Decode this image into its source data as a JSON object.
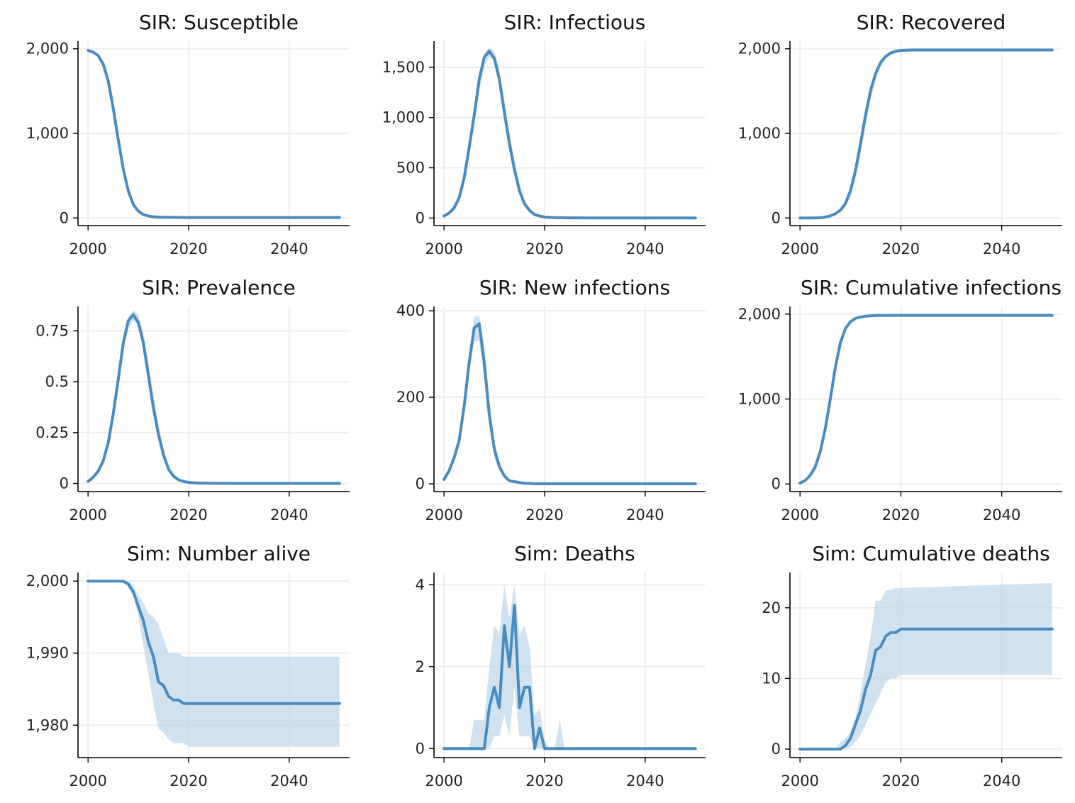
{
  "style": {
    "line_color": "#4a8bbf",
    "band_color": "#bcd6ea",
    "grid_color": "#eeeeee"
  },
  "chart_data": [
    {
      "type": "line",
      "title": "SIR: Susceptible",
      "xticks": [
        2000,
        2020,
        2040
      ],
      "xlim": [
        1998,
        2052
      ],
      "yticks": [
        0,
        1000,
        2000
      ],
      "yticklabels": [
        "0",
        "1,000",
        "2,000"
      ],
      "ylim": [
        -90,
        2090
      ],
      "grid": true,
      "x": [
        2000,
        2001,
        2002,
        2003,
        2004,
        2005,
        2006,
        2007,
        2008,
        2009,
        2010,
        2011,
        2012,
        2013,
        2014,
        2015,
        2020,
        2030,
        2040,
        2050
      ],
      "y": [
        1980,
        1960,
        1920,
        1820,
        1620,
        1300,
        930,
        580,
        320,
        160,
        80,
        40,
        22,
        14,
        10,
        8,
        6,
        6,
        6,
        6
      ],
      "lower": [
        1975,
        1950,
        1900,
        1790,
        1580,
        1250,
        880,
        540,
        290,
        140,
        70,
        35,
        18,
        12,
        8,
        6,
        5,
        5,
        5,
        5
      ],
      "upper": [
        1985,
        1968,
        1935,
        1850,
        1670,
        1360,
        990,
        640,
        360,
        190,
        95,
        50,
        28,
        18,
        13,
        10,
        8,
        8,
        8,
        8
      ]
    },
    {
      "type": "line",
      "title": "SIR: Infectious",
      "xticks": [
        2000,
        2020,
        2040
      ],
      "xlim": [
        1998,
        2052
      ],
      "yticks": [
        0,
        500,
        1000,
        1500
      ],
      "yticklabels": [
        "0",
        "500",
        "1,000",
        "1,500"
      ],
      "ylim": [
        -75,
        1760
      ],
      "grid": true,
      "x": [
        2000,
        2001,
        2002,
        2003,
        2004,
        2005,
        2006,
        2007,
        2008,
        2009,
        2010,
        2011,
        2012,
        2013,
        2014,
        2015,
        2016,
        2017,
        2018,
        2019,
        2020,
        2022,
        2025,
        2030,
        2040,
        2050
      ],
      "y": [
        20,
        50,
        100,
        200,
        400,
        700,
        1020,
        1380,
        1600,
        1660,
        1590,
        1380,
        1050,
        740,
        480,
        270,
        140,
        75,
        35,
        20,
        10,
        4,
        2,
        1,
        1,
        1
      ],
      "lower": [
        15,
        40,
        85,
        175,
        350,
        620,
        920,
        1260,
        1500,
        1600,
        1560,
        1380,
        1080,
        780,
        520,
        300,
        160,
        85,
        42,
        22,
        12,
        5,
        2,
        1,
        1,
        1
      ],
      "upper": [
        25,
        60,
        115,
        225,
        440,
        770,
        1100,
        1450,
        1640,
        1700,
        1660,
        1480,
        1170,
        850,
        580,
        340,
        180,
        100,
        50,
        28,
        14,
        6,
        3,
        1,
        1,
        1
      ]
    },
    {
      "type": "line",
      "title": "SIR: Recovered",
      "xticks": [
        2000,
        2020,
        2040
      ],
      "xlim": [
        1998,
        2052
      ],
      "yticks": [
        0,
        1000,
        2000
      ],
      "yticklabels": [
        "0",
        "1,000",
        "2,000"
      ],
      "ylim": [
        -90,
        2090
      ],
      "grid": true,
      "x": [
        2000,
        2002,
        2004,
        2005,
        2006,
        2007,
        2008,
        2009,
        2010,
        2011,
        2012,
        2013,
        2014,
        2015,
        2016,
        2017,
        2018,
        2019,
        2020,
        2022,
        2030,
        2040,
        2050
      ],
      "y": [
        0,
        0,
        2,
        10,
        25,
        50,
        90,
        170,
        320,
        560,
        880,
        1220,
        1510,
        1710,
        1840,
        1910,
        1950,
        1970,
        1980,
        1985,
        1985,
        1985,
        1985
      ],
      "lower": [
        0,
        0,
        1,
        6,
        18,
        38,
        70,
        130,
        250,
        460,
        760,
        1100,
        1400,
        1630,
        1790,
        1880,
        1930,
        1960,
        1975,
        1983,
        1983,
        1983,
        1983
      ],
      "upper": [
        0,
        1,
        3,
        14,
        32,
        60,
        110,
        200,
        370,
        620,
        950,
        1280,
        1560,
        1750,
        1860,
        1920,
        1955,
        1975,
        1984,
        1987,
        1987,
        1987,
        1987
      ]
    },
    {
      "type": "line",
      "title": "SIR: Prevalence",
      "xticks": [
        2000,
        2020,
        2040
      ],
      "xlim": [
        1998,
        2052
      ],
      "yticks": [
        0,
        0.25,
        0.5,
        0.75
      ],
      "yticklabels": [
        "0",
        "0.25",
        "0.5",
        "0.75"
      ],
      "ylim": [
        -0.04,
        0.87
      ],
      "grid": true,
      "x": [
        2000,
        2001,
        2002,
        2003,
        2004,
        2005,
        2006,
        2007,
        2008,
        2009,
        2010,
        2011,
        2012,
        2013,
        2014,
        2015,
        2016,
        2017,
        2018,
        2019,
        2020,
        2022,
        2025,
        2030,
        2040,
        2050
      ],
      "y": [
        0.01,
        0.03,
        0.06,
        0.11,
        0.2,
        0.34,
        0.51,
        0.69,
        0.8,
        0.83,
        0.79,
        0.69,
        0.53,
        0.37,
        0.24,
        0.14,
        0.07,
        0.035,
        0.018,
        0.01,
        0.005,
        0.002,
        0.001,
        0.0,
        0.0,
        0.0
      ],
      "lower": [
        0.008,
        0.022,
        0.05,
        0.095,
        0.18,
        0.3,
        0.46,
        0.64,
        0.76,
        0.8,
        0.78,
        0.69,
        0.54,
        0.39,
        0.26,
        0.15,
        0.08,
        0.04,
        0.02,
        0.011,
        0.006,
        0.002,
        0.001,
        0.0,
        0.0,
        0.0
      ],
      "upper": [
        0.012,
        0.035,
        0.07,
        0.125,
        0.22,
        0.37,
        0.55,
        0.72,
        0.82,
        0.85,
        0.83,
        0.74,
        0.59,
        0.43,
        0.29,
        0.17,
        0.09,
        0.048,
        0.024,
        0.013,
        0.007,
        0.003,
        0.001,
        0.0,
        0.0,
        0.0
      ]
    },
    {
      "type": "line",
      "title": "SIR: New infections",
      "xticks": [
        2000,
        2020,
        2040
      ],
      "xlim": [
        1998,
        2052
      ],
      "yticks": [
        0,
        200,
        400
      ],
      "yticklabels": [
        "0",
        "200",
        "400"
      ],
      "ylim": [
        -18,
        410
      ],
      "grid": true,
      "x": [
        2000,
        2001,
        2002,
        2003,
        2004,
        2005,
        2006,
        2007,
        2008,
        2009,
        2010,
        2011,
        2012,
        2013,
        2014,
        2015,
        2016,
        2017,
        2018,
        2019,
        2020,
        2025,
        2030,
        2040,
        2050
      ],
      "y": [
        10,
        30,
        60,
        100,
        180,
        280,
        360,
        370,
        280,
        160,
        80,
        40,
        18,
        7,
        5,
        3,
        1,
        1,
        0,
        0,
        0,
        0,
        0,
        0,
        0
      ],
      "lower": [
        8,
        25,
        52,
        88,
        160,
        255,
        330,
        330,
        240,
        130,
        62,
        30,
        13,
        5,
        3,
        2,
        1,
        0,
        0,
        0,
        0,
        0,
        0,
        0,
        0
      ],
      "upper": [
        12,
        35,
        68,
        112,
        200,
        305,
        385,
        390,
        320,
        195,
        100,
        52,
        24,
        10,
        7,
        4,
        2,
        1,
        0,
        0,
        0,
        0,
        0,
        0,
        0
      ]
    },
    {
      "type": "line",
      "title": "SIR: Cumulative infections",
      "xticks": [
        2000,
        2020,
        2040
      ],
      "xlim": [
        1998,
        2052
      ],
      "yticks": [
        0,
        1000,
        2000
      ],
      "yticklabels": [
        "0",
        "1,000",
        "2,000"
      ],
      "ylim": [
        -90,
        2090
      ],
      "grid": true,
      "x": [
        2000,
        2001,
        2002,
        2003,
        2004,
        2005,
        2006,
        2007,
        2008,
        2009,
        2010,
        2011,
        2012,
        2013,
        2014,
        2015,
        2016,
        2020,
        2030,
        2040,
        2050
      ],
      "y": [
        10,
        40,
        100,
        200,
        380,
        650,
        1000,
        1370,
        1660,
        1830,
        1910,
        1950,
        1965,
        1975,
        1980,
        1983,
        1984,
        1985,
        1985,
        1985,
        1985
      ],
      "lower": [
        8,
        32,
        85,
        175,
        340,
        590,
        920,
        1280,
        1590,
        1790,
        1890,
        1940,
        1960,
        1972,
        1978,
        1982,
        1983,
        1984,
        1984,
        1984,
        1984
      ],
      "upper": [
        12,
        48,
        115,
        225,
        420,
        710,
        1080,
        1450,
        1720,
        1860,
        1925,
        1957,
        1970,
        1978,
        1982,
        1984,
        1985,
        1986,
        1986,
        1986,
        1986
      ]
    },
    {
      "type": "line",
      "title": "Sim: Number alive",
      "xticks": [
        2000,
        2020,
        2040
      ],
      "xlim": [
        1998,
        2052
      ],
      "yticks": [
        1980,
        1990,
        2000
      ],
      "yticklabels": [
        "1,980",
        "1,990",
        "2,000"
      ],
      "ylim": [
        1975.5,
        2001.2
      ],
      "grid": true,
      "x": [
        2000,
        2007,
        2008,
        2009,
        2010,
        2011,
        2012,
        2013,
        2014,
        2015,
        2016,
        2017,
        2018,
        2019,
        2020,
        2050
      ],
      "y": [
        2000,
        2000,
        1999.6,
        1998.5,
        1996.5,
        1994.5,
        1991.5,
        1989.5,
        1986,
        1985.5,
        1984,
        1983.5,
        1983.5,
        1983,
        1983,
        1983
      ],
      "lower": [
        2000,
        2000,
        1999,
        1998,
        1995,
        1991,
        1987,
        1983,
        1979.5,
        1979,
        1978,
        1977.5,
        1977.5,
        1977.5,
        1977,
        1977
      ],
      "upper": [
        2000,
        2000,
        2000,
        1999.5,
        1998,
        1997,
        1995.5,
        1995,
        1994,
        1992,
        1990,
        1990,
        1990,
        1989.5,
        1989.5,
        1989.5
      ]
    },
    {
      "type": "line",
      "title": "Sim: Deaths",
      "xticks": [
        2000,
        2020,
        2040
      ],
      "xlim": [
        1998,
        2052
      ],
      "yticks": [
        0,
        2,
        4
      ],
      "yticklabels": [
        "0",
        "2",
        "4"
      ],
      "ylim": [
        -0.22,
        4.3
      ],
      "grid": true,
      "x": [
        2000,
        2001,
        2002,
        2003,
        2004,
        2005,
        2006,
        2007,
        2008,
        2009,
        2010,
        2011,
        2012,
        2013,
        2014,
        2015,
        2016,
        2017,
        2018,
        2019,
        2020,
        2021,
        2022,
        2023,
        2024,
        2025,
        2030,
        2040,
        2050
      ],
      "y": [
        0,
        0,
        0,
        0,
        0,
        0,
        0,
        0,
        0,
        1,
        1.5,
        1,
        3,
        2,
        3.5,
        1,
        1.5,
        1.5,
        0,
        0.5,
        0,
        0,
        0,
        0,
        0,
        0,
        0,
        0,
        0
      ],
      "lower": [
        0,
        0,
        0,
        0,
        0,
        0,
        0,
        0,
        0,
        0,
        0.3,
        0.3,
        0.8,
        0.3,
        1.5,
        0.3,
        0.3,
        0.3,
        0,
        0,
        0,
        0,
        0,
        0,
        0,
        0,
        0,
        0,
        0
      ],
      "upper": [
        0,
        0,
        0,
        0,
        0,
        0,
        0.7,
        0.7,
        0.7,
        2,
        3,
        2.8,
        4,
        3.2,
        4,
        2.8,
        3,
        2.5,
        0.8,
        1,
        0.2,
        0,
        0,
        0.7,
        0,
        0,
        0,
        0,
        0
      ]
    },
    {
      "type": "line",
      "title": "Sim: Cumulative deaths",
      "xticks": [
        2000,
        2020,
        2040
      ],
      "xlim": [
        1998,
        2052
      ],
      "yticks": [
        0,
        10,
        20
      ],
      "yticklabels": [
        "0",
        "10",
        "20"
      ],
      "ylim": [
        -1.2,
        25
      ],
      "grid": true,
      "x": [
        2000,
        2007,
        2008,
        2009,
        2010,
        2011,
        2012,
        2013,
        2014,
        2015,
        2016,
        2017,
        2018,
        2019,
        2020,
        2050
      ],
      "y": [
        0,
        0,
        0,
        0.5,
        1.5,
        3.5,
        5.5,
        8.5,
        10.5,
        14,
        14.5,
        16,
        16.5,
        16.5,
        17,
        17
      ],
      "lower": [
        0,
        0,
        0,
        0,
        0.3,
        1,
        2,
        3.5,
        5,
        6.5,
        8,
        9.5,
        10,
        10,
        10.5,
        10.5
      ],
      "upper": [
        0,
        0,
        1,
        1.5,
        2.5,
        4.5,
        8,
        12,
        16,
        21,
        21,
        22.5,
        22.5,
        22.8,
        22.8,
        23.5
      ]
    }
  ]
}
